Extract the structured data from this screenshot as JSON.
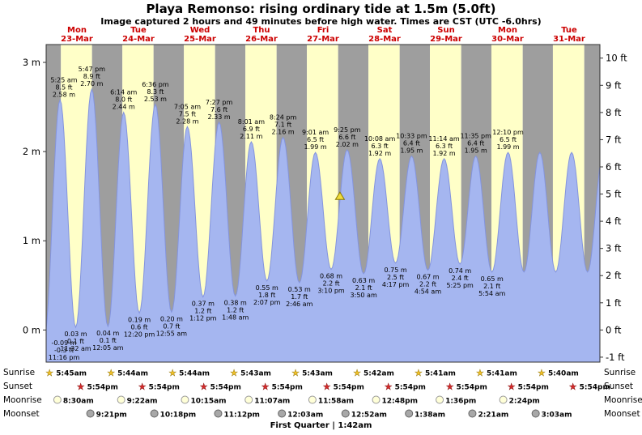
{
  "title": "Playa Remonso: rising ordinary tide at 1.5m (5.0ft)",
  "subtitle": "Image captured 2 hours and 49 minutes before high water. Times are CST (UTC -6.0hrs)",
  "footer": "First Quarter | 1:42am",
  "colors": {
    "day_band": "#ffffc8",
    "night_band": "#9e9e9e",
    "tide_fill": "#a5b6f0",
    "tide_stroke": "#8494dd",
    "day_label": "#cc0000",
    "marker_fill": "#f0dc3c",
    "sunrise_star": "#f0c028",
    "sunset_star": "#d42a2a",
    "moonrise_fill": "#ffffd8",
    "moonset_fill": "#a8a8a8"
  },
  "chart_data": {
    "type": "area",
    "y_axis_left": {
      "unit": "m",
      "ticks": [
        3,
        2,
        1,
        0
      ]
    },
    "y_axis_right": {
      "unit": "ft",
      "ticks": [
        10,
        9,
        8,
        7,
        6,
        5,
        4,
        3,
        2,
        1,
        0,
        -1
      ]
    },
    "days": [
      {
        "name": "Mon",
        "date": "23-Mar"
      },
      {
        "name": "Tue",
        "date": "24-Mar"
      },
      {
        "name": "Wed",
        "date": "25-Mar"
      },
      {
        "name": "Thu",
        "date": "26-Mar"
      },
      {
        "name": "Fri",
        "date": "27-Mar"
      },
      {
        "name": "Sat",
        "date": "28-Mar"
      },
      {
        "name": "Sun",
        "date": "29-Mar"
      },
      {
        "name": "Mon",
        "date": "30-Mar"
      },
      {
        "name": "Tue",
        "date": "31-Mar"
      }
    ],
    "tides": [
      {
        "type": "low",
        "day": -1,
        "time": "11:16 pm",
        "m": -0.09,
        "ft": -0.3
      },
      {
        "type": "high",
        "day": 0,
        "time": "5:25 am",
        "m": 2.58,
        "ft": 8.5
      },
      {
        "type": "low",
        "day": 0,
        "time": "11:32 am",
        "m": 0.03,
        "ft": 0.1
      },
      {
        "type": "high",
        "day": 0,
        "time": "5:47 pm",
        "m": 2.7,
        "ft": 8.9
      },
      {
        "type": "low",
        "day": 1,
        "time": "12:05 am",
        "m": 0.04,
        "ft": 0.1
      },
      {
        "type": "high",
        "day": 1,
        "time": "6:14 am",
        "m": 2.44,
        "ft": 8.0
      },
      {
        "type": "low",
        "day": 1,
        "time": "12:20 pm",
        "m": 0.19,
        "ft": 0.6
      },
      {
        "type": "high",
        "day": 1,
        "time": "6:36 pm",
        "m": 2.53,
        "ft": 8.3
      },
      {
        "type": "low",
        "day": 2,
        "time": "12:55 am",
        "m": 0.2,
        "ft": 0.7
      },
      {
        "type": "high",
        "day": 2,
        "time": "7:05 am",
        "m": 2.28,
        "ft": 7.5
      },
      {
        "type": "low",
        "day": 2,
        "time": "1:12 pm",
        "m": 0.37,
        "ft": 1.2
      },
      {
        "type": "high",
        "day": 2,
        "time": "7:27 pm",
        "m": 2.33,
        "ft": 7.6
      },
      {
        "type": "low",
        "day": 3,
        "time": "1:48 am",
        "m": 0.38,
        "ft": 1.2
      },
      {
        "type": "high",
        "day": 3,
        "time": "8:01 am",
        "m": 2.11,
        "ft": 6.9
      },
      {
        "type": "low",
        "day": 3,
        "time": "2:07 pm",
        "m": 0.55,
        "ft": 1.8
      },
      {
        "type": "high",
        "day": 3,
        "time": "8:24 pm",
        "m": 2.16,
        "ft": 7.1
      },
      {
        "type": "low",
        "day": 4,
        "time": "2:46 am",
        "m": 0.53,
        "ft": 1.7
      },
      {
        "type": "high",
        "day": 4,
        "time": "9:01 am",
        "m": 1.99,
        "ft": 6.5
      },
      {
        "type": "low",
        "day": 4,
        "time": "3:10 pm",
        "m": 0.68,
        "ft": 2.2
      },
      {
        "type": "high",
        "day": 4,
        "time": "9:25 pm",
        "m": 2.02,
        "ft": 6.6
      },
      {
        "type": "low",
        "day": 5,
        "time": "3:50 am",
        "m": 0.63,
        "ft": 2.1
      },
      {
        "type": "high",
        "day": 5,
        "time": "10:08 am",
        "m": 1.92,
        "ft": 6.3
      },
      {
        "type": "low",
        "day": 5,
        "time": "4:17 pm",
        "m": 0.75,
        "ft": 2.5
      },
      {
        "type": "high",
        "day": 5,
        "time": "10:33 pm",
        "m": 1.95,
        "ft": 6.4
      },
      {
        "type": "low",
        "day": 6,
        "time": "4:54 am",
        "m": 0.67,
        "ft": 2.2
      },
      {
        "type": "high",
        "day": 6,
        "time": "11:14 am",
        "m": 1.92,
        "ft": 6.3
      },
      {
        "type": "low",
        "day": 6,
        "time": "5:25 pm",
        "m": 0.74,
        "ft": 2.4
      },
      {
        "type": "high",
        "day": 6,
        "time": "11:35 pm",
        "m": 1.95,
        "ft": 6.4
      },
      {
        "type": "low",
        "day": 7,
        "time": "5:54 am",
        "m": 0.65,
        "ft": 2.1
      },
      {
        "type": "high",
        "day": 7,
        "time": "12:10 pm",
        "m": 1.99,
        "ft": 6.5
      }
    ],
    "marker": {
      "day": 4,
      "time": "6:36 pm",
      "m": 1.5
    },
    "astro": {
      "rows": [
        {
          "id": "sunrise",
          "label": "Sunrise",
          "icon": "sunrise-star",
          "items": [
            {
              "day": 0,
              "time": "5:45am"
            },
            {
              "day": 1,
              "time": "5:44am"
            },
            {
              "day": 2,
              "time": "5:44am"
            },
            {
              "day": 3,
              "time": "5:43am"
            },
            {
              "day": 4,
              "time": "5:43am"
            },
            {
              "day": 5,
              "time": "5:42am"
            },
            {
              "day": 6,
              "time": "5:41am"
            },
            {
              "day": 7,
              "time": "5:41am"
            },
            {
              "day": 8,
              "time": "5:40am"
            }
          ]
        },
        {
          "id": "sunset",
          "label": "Sunset",
          "icon": "sunset-star",
          "items": [
            {
              "day": 0,
              "time": "5:54pm"
            },
            {
              "day": 1,
              "time": "5:54pm"
            },
            {
              "day": 2,
              "time": "5:54pm"
            },
            {
              "day": 3,
              "time": "5:54pm"
            },
            {
              "day": 4,
              "time": "5:54pm"
            },
            {
              "day": 5,
              "time": "5:54pm"
            },
            {
              "day": 6,
              "time": "5:54pm"
            },
            {
              "day": 7,
              "time": "5:54pm"
            },
            {
              "day": 8,
              "time": "5:54pm"
            }
          ]
        },
        {
          "id": "moonrise",
          "label": "Moonrise",
          "icon": "moonrise-circle",
          "items": [
            {
              "day": 0,
              "time": "8:30am"
            },
            {
              "day": 1,
              "time": "9:22am"
            },
            {
              "day": 2,
              "time": "10:15am"
            },
            {
              "day": 3,
              "time": "11:07am"
            },
            {
              "day": 4,
              "time": "11:58am"
            },
            {
              "day": 5,
              "time": "12:48pm"
            },
            {
              "day": 6,
              "time": "1:36pm"
            },
            {
              "day": 7,
              "time": "2:24pm"
            }
          ]
        },
        {
          "id": "moonset",
          "label": "Moonset",
          "icon": "moonset-circle",
          "items": [
            {
              "day": 0,
              "time": "9:21pm"
            },
            {
              "day": 1,
              "time": "10:18pm"
            },
            {
              "day": 2,
              "time": "11:12pm"
            },
            {
              "day": 4,
              "time": "12:03am"
            },
            {
              "day": 5,
              "time": "12:52am"
            },
            {
              "day": 6,
              "time": "1:38am"
            },
            {
              "day": 7,
              "time": "2:21am"
            },
            {
              "day": 8,
              "time": "3:03am"
            }
          ]
        }
      ]
    }
  }
}
